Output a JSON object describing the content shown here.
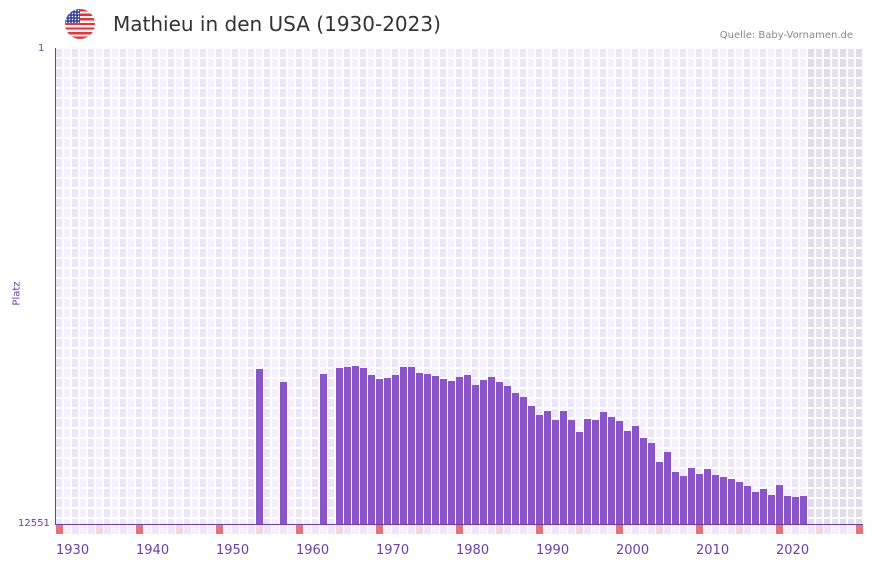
{
  "header": {
    "title": "Mathieu in den USA (1930-2023)",
    "source": "Quelle: Baby-Vornamen.de",
    "flag_icon": "us-flag-icon"
  },
  "axes": {
    "y_title": "Platz",
    "y_top_label": "1",
    "y_bottom_label": "12551",
    "x_labels": [
      "1930",
      "1940",
      "1950",
      "1960",
      "1970",
      "1980",
      "1990",
      "2000",
      "2010",
      "2020"
    ]
  },
  "colors": {
    "bar": "#8a55c6",
    "axis": "#6a3fa0",
    "decade_marker": "#e5737a",
    "half_decade_marker": "#f3d7e0",
    "grid_a": "#ece6f8",
    "grid_b": "#f3f0fb",
    "future_shade": "#e2dfee"
  },
  "chart_data": {
    "type": "bar",
    "title": "Mathieu in den USA (1930-2023)",
    "xlabel": "",
    "ylabel": "Platz",
    "y_inverted": true,
    "ylim": [
      1,
      12551
    ],
    "xlim": [
      1930,
      2030
    ],
    "grid": true,
    "legend": null,
    "categories": [
      1955,
      1958,
      1963,
      1965,
      1966,
      1967,
      1968,
      1969,
      1970,
      1971,
      1972,
      1973,
      1974,
      1975,
      1976,
      1977,
      1978,
      1979,
      1980,
      1981,
      1982,
      1983,
      1984,
      1985,
      1986,
      1987,
      1988,
      1989,
      1990,
      1991,
      1992,
      1993,
      1994,
      1995,
      1996,
      1997,
      1998,
      1999,
      2000,
      2001,
      2002,
      2003,
      2004,
      2005,
      2006,
      2007,
      2008,
      2009,
      2010,
      2011,
      2012,
      2013,
      2014,
      2015,
      2016,
      2017,
      2018,
      2019,
      2020,
      2021,
      2022,
      2023
    ],
    "values": [
      8456,
      8799,
      8588,
      8430,
      8403,
      8377,
      8430,
      8614,
      8720,
      8693,
      8614,
      8403,
      8403,
      8561,
      8588,
      8640,
      8720,
      8772,
      8667,
      8614,
      8878,
      8746,
      8667,
      8799,
      8904,
      9089,
      9195,
      9433,
      9671,
      9565,
      9803,
      9565,
      9803,
      10120,
      9777,
      9803,
      9592,
      9724,
      9830,
      10094,
      9962,
      10279,
      10411,
      10913,
      10649,
      11177,
      11283,
      11071,
      11230,
      11098,
      11256,
      11309,
      11362,
      11441,
      11547,
      11705,
      11626,
      11785,
      11520,
      11811,
      11838,
      11811
    ]
  }
}
